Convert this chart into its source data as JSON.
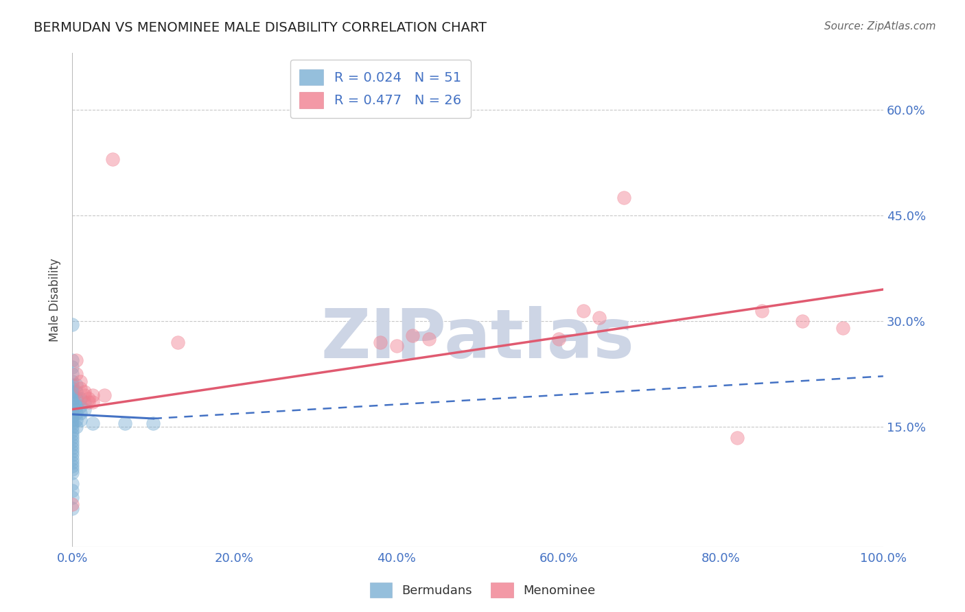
{
  "title": "BERMUDAN VS MENOMINEE MALE DISABILITY CORRELATION CHART",
  "source": "Source: ZipAtlas.com",
  "ylabel": "Male Disability",
  "xlim": [
    0.0,
    1.0
  ],
  "ylim": [
    -0.02,
    0.68
  ],
  "y_ticks": [
    0.15,
    0.3,
    0.45,
    0.6
  ],
  "x_ticks": [
    0.0,
    0.2,
    0.4,
    0.6,
    0.8,
    1.0
  ],
  "legend_entries": [
    {
      "label": "R = 0.024   N = 51",
      "color": "#aac4e8"
    },
    {
      "label": "R = 0.477   N = 26",
      "color": "#f4a7b0"
    }
  ],
  "legend_labels": [
    "Bermudans",
    "Menominee"
  ],
  "bermudans_scatter": [
    [
      0.0,
      0.295
    ],
    [
      0.0,
      0.245
    ],
    [
      0.0,
      0.235
    ],
    [
      0.0,
      0.225
    ],
    [
      0.0,
      0.215
    ],
    [
      0.0,
      0.21
    ],
    [
      0.0,
      0.205
    ],
    [
      0.0,
      0.2
    ],
    [
      0.0,
      0.195
    ],
    [
      0.0,
      0.19
    ],
    [
      0.0,
      0.185
    ],
    [
      0.0,
      0.18
    ],
    [
      0.0,
      0.175
    ],
    [
      0.0,
      0.17
    ],
    [
      0.0,
      0.165
    ],
    [
      0.0,
      0.16
    ],
    [
      0.0,
      0.155
    ],
    [
      0.0,
      0.15
    ],
    [
      0.0,
      0.145
    ],
    [
      0.0,
      0.14
    ],
    [
      0.0,
      0.135
    ],
    [
      0.0,
      0.13
    ],
    [
      0.0,
      0.125
    ],
    [
      0.0,
      0.12
    ],
    [
      0.0,
      0.115
    ],
    [
      0.0,
      0.11
    ],
    [
      0.0,
      0.105
    ],
    [
      0.0,
      0.1
    ],
    [
      0.0,
      0.095
    ],
    [
      0.0,
      0.09
    ],
    [
      0.0,
      0.085
    ],
    [
      0.0,
      0.07
    ],
    [
      0.0,
      0.06
    ],
    [
      0.0,
      0.05
    ],
    [
      0.0,
      0.035
    ],
    [
      0.005,
      0.21
    ],
    [
      0.005,
      0.2
    ],
    [
      0.005,
      0.19
    ],
    [
      0.005,
      0.18
    ],
    [
      0.005,
      0.17
    ],
    [
      0.005,
      0.16
    ],
    [
      0.005,
      0.15
    ],
    [
      0.01,
      0.19
    ],
    [
      0.01,
      0.18
    ],
    [
      0.01,
      0.17
    ],
    [
      0.01,
      0.16
    ],
    [
      0.015,
      0.185
    ],
    [
      0.015,
      0.175
    ],
    [
      0.025,
      0.155
    ],
    [
      0.065,
      0.155
    ],
    [
      0.1,
      0.155
    ]
  ],
  "menominee_scatter": [
    [
      0.0,
      0.04
    ],
    [
      0.005,
      0.245
    ],
    [
      0.005,
      0.225
    ],
    [
      0.01,
      0.215
    ],
    [
      0.01,
      0.205
    ],
    [
      0.015,
      0.2
    ],
    [
      0.015,
      0.195
    ],
    [
      0.02,
      0.19
    ],
    [
      0.02,
      0.185
    ],
    [
      0.025,
      0.195
    ],
    [
      0.025,
      0.185
    ],
    [
      0.04,
      0.195
    ],
    [
      0.05,
      0.53
    ],
    [
      0.13,
      0.27
    ],
    [
      0.38,
      0.27
    ],
    [
      0.4,
      0.265
    ],
    [
      0.42,
      0.28
    ],
    [
      0.44,
      0.275
    ],
    [
      0.6,
      0.275
    ],
    [
      0.63,
      0.315
    ],
    [
      0.65,
      0.305
    ],
    [
      0.68,
      0.475
    ],
    [
      0.82,
      0.135
    ],
    [
      0.85,
      0.315
    ],
    [
      0.9,
      0.3
    ],
    [
      0.95,
      0.29
    ]
  ],
  "bermudans_line_solid": {
    "x": [
      0.0,
      0.1
    ],
    "y": [
      0.168,
      0.162
    ]
  },
  "bermudans_line_dashed": {
    "x": [
      0.1,
      1.0
    ],
    "y": [
      0.162,
      0.222
    ]
  },
  "menominee_line": {
    "x": [
      0.0,
      1.0
    ],
    "y": [
      0.175,
      0.345
    ]
  },
  "scatter_color_bermudans": "#7bafd4",
  "scatter_color_menominee": "#f08090",
  "line_color_bermudans": "#4472c4",
  "line_color_menominee": "#e05a70",
  "grid_color": "#c8c8c8",
  "title_color": "#222222",
  "tick_color": "#4472c4",
  "source_color": "#666666",
  "bg_color": "#ffffff",
  "watermark_color": "#cdd5e5"
}
